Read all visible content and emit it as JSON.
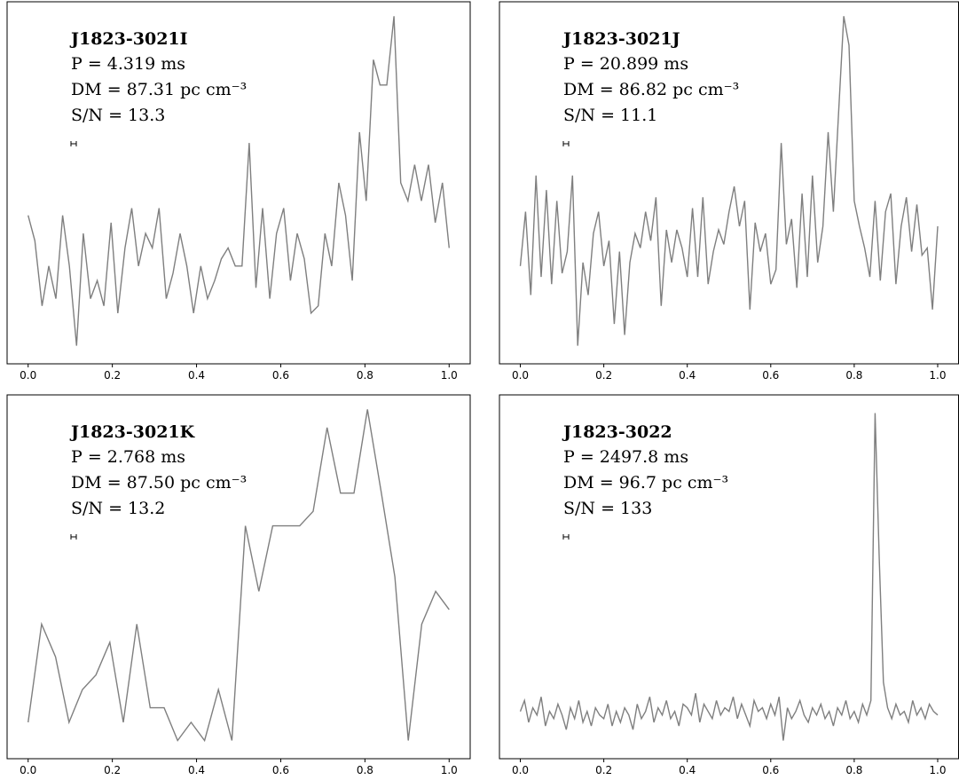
{
  "chart_data": [
    {
      "type": "line",
      "title": "J1823-3021I",
      "annotations": [
        "P = 4.319 ms",
        "DM = 87.31 pc cm⁻³",
        "S/N = 13.3"
      ],
      "color": "#7f7f7f",
      "x": [
        0,
        0.016,
        0.033,
        0.049,
        0.066,
        0.082,
        0.098,
        0.115,
        0.131,
        0.148,
        0.164,
        0.18,
        0.197,
        0.213,
        0.23,
        0.246,
        0.262,
        0.279,
        0.295,
        0.311,
        0.328,
        0.344,
        0.361,
        0.377,
        0.393,
        0.41,
        0.426,
        0.443,
        0.459,
        0.475,
        0.492,
        0.508,
        0.525,
        0.541,
        0.557,
        0.574,
        0.59,
        0.607,
        0.623,
        0.639,
        0.656,
        0.672,
        0.689,
        0.705,
        0.721,
        0.738,
        0.754,
        0.77,
        0.787,
        0.803,
        0.82,
        0.836,
        0.852,
        0.869,
        0.885,
        0.902,
        0.918,
        0.934,
        0.951,
        0.967,
        0.984,
        1.0
      ],
      "values": [
        0.41,
        0.34,
        0.16,
        0.27,
        0.18,
        0.41,
        0.27,
        0.05,
        0.36,
        0.18,
        0.23,
        0.16,
        0.39,
        0.14,
        0.32,
        0.43,
        0.27,
        0.36,
        0.32,
        0.43,
        0.18,
        0.25,
        0.36,
        0.27,
        0.14,
        0.27,
        0.18,
        0.23,
        0.29,
        0.32,
        0.27,
        0.27,
        0.61,
        0.21,
        0.43,
        0.18,
        0.36,
        0.43,
        0.23,
        0.36,
        0.29,
        0.14,
        0.16,
        0.36,
        0.27,
        0.5,
        0.41,
        0.23,
        0.64,
        0.45,
        0.84,
        0.77,
        0.77,
        0.96,
        0.5,
        0.45,
        0.55,
        0.45,
        0.55,
        0.39,
        0.5,
        0.32
      ],
      "xlim": [
        -0.05,
        1.05
      ],
      "ylim": [
        0,
        1
      ],
      "xticks": [
        {
          "value": 0,
          "label": "0.0"
        },
        0.2,
        0.4,
        0.6,
        0.8,
        {
          "value": 1,
          "label": "1.0"
        }
      ]
    },
    {
      "type": "line",
      "title": "J1823-3021J",
      "annotations": [
        "P = 20.899 ms",
        "DM = 86.82 pc cm⁻³",
        "S/N = 11.1"
      ],
      "color": "#7f7f7f",
      "x": [
        0,
        0.0125,
        0.025,
        0.0375,
        0.05,
        0.0625,
        0.075,
        0.0875,
        0.1,
        0.1125,
        0.125,
        0.1375,
        0.15,
        0.1625,
        0.175,
        0.1875,
        0.2,
        0.2125,
        0.225,
        0.2375,
        0.25,
        0.2625,
        0.275,
        0.2875,
        0.3,
        0.3125,
        0.325,
        0.3375,
        0.35,
        0.3625,
        0.375,
        0.3875,
        0.4,
        0.4125,
        0.425,
        0.4375,
        0.45,
        0.4625,
        0.475,
        0.4875,
        0.5,
        0.5125,
        0.525,
        0.5375,
        0.55,
        0.5625,
        0.575,
        0.5875,
        0.6,
        0.6125,
        0.625,
        0.6375,
        0.65,
        0.6625,
        0.675,
        0.6875,
        0.7,
        0.7125,
        0.725,
        0.7375,
        0.75,
        0.7625,
        0.775,
        0.7875,
        0.8,
        0.8125,
        0.825,
        0.8375,
        0.85,
        0.8625,
        0.875,
        0.8875,
        0.9,
        0.9125,
        0.925,
        0.9375,
        0.95,
        0.9625,
        0.975,
        0.9875,
        1.0
      ],
      "values": [
        0.27,
        0.42,
        0.19,
        0.52,
        0.24,
        0.48,
        0.22,
        0.45,
        0.25,
        0.31,
        0.52,
        0.05,
        0.28,
        0.19,
        0.36,
        0.42,
        0.27,
        0.34,
        0.11,
        0.31,
        0.08,
        0.28,
        0.36,
        0.32,
        0.42,
        0.34,
        0.46,
        0.16,
        0.37,
        0.28,
        0.37,
        0.32,
        0.24,
        0.43,
        0.24,
        0.46,
        0.22,
        0.31,
        0.37,
        0.33,
        0.42,
        0.49,
        0.38,
        0.45,
        0.15,
        0.39,
        0.31,
        0.36,
        0.22,
        0.26,
        0.61,
        0.33,
        0.4,
        0.21,
        0.47,
        0.24,
        0.52,
        0.28,
        0.38,
        0.64,
        0.42,
        0.69,
        0.96,
        0.88,
        0.45,
        0.38,
        0.32,
        0.24,
        0.45,
        0.23,
        0.42,
        0.47,
        0.22,
        0.38,
        0.46,
        0.31,
        0.44,
        0.3,
        0.32,
        0.15,
        0.38
      ],
      "xlim": [
        -0.05,
        1.05
      ],
      "ylim": [
        0,
        1
      ],
      "xticks": [
        {
          "value": 0,
          "label": "0.0"
        },
        0.2,
        0.4,
        0.6,
        0.8,
        {
          "value": 1,
          "label": "1.0"
        }
      ]
    },
    {
      "type": "line",
      "title": "J1823-3021K",
      "annotations": [
        "P = 2.768 ms",
        "DM = 87.50 pc cm⁻³",
        "S/N = 13.2"
      ],
      "color": "#7f7f7f",
      "x": [
        0,
        0.032,
        0.065,
        0.097,
        0.129,
        0.161,
        0.194,
        0.226,
        0.258,
        0.29,
        0.323,
        0.355,
        0.387,
        0.419,
        0.452,
        0.484,
        0.516,
        0.548,
        0.581,
        0.613,
        0.645,
        0.677,
        0.71,
        0.742,
        0.774,
        0.806,
        0.839,
        0.871,
        0.903,
        0.935,
        0.968,
        1.0
      ],
      "values": [
        0.1,
        0.37,
        0.28,
        0.1,
        0.19,
        0.23,
        0.32,
        0.1,
        0.37,
        0.14,
        0.14,
        0.05,
        0.1,
        0.05,
        0.19,
        0.05,
        0.64,
        0.46,
        0.64,
        0.64,
        0.64,
        0.68,
        0.91,
        0.73,
        0.73,
        0.96,
        0.73,
        0.5,
        0.05,
        0.37,
        0.46,
        0.41
      ],
      "xlim": [
        -0.05,
        1.05
      ],
      "ylim": [
        0,
        1
      ],
      "xticks": [
        {
          "value": 0,
          "label": "0.0"
        },
        0.2,
        0.4,
        0.6,
        0.8,
        {
          "value": 1,
          "label": "1.0"
        }
      ]
    },
    {
      "type": "line",
      "title": "J1823-3022",
      "annotations": [
        "P = 2497.8 ms",
        "DM = 96.7 pc cm⁻³",
        "S/N = 133"
      ],
      "color": "#7f7f7f",
      "x": [
        0,
        0.01,
        0.02,
        0.03,
        0.04,
        0.05,
        0.06,
        0.07,
        0.08,
        0.09,
        0.1,
        0.11,
        0.12,
        0.13,
        0.14,
        0.15,
        0.16,
        0.17,
        0.18,
        0.19,
        0.2,
        0.21,
        0.22,
        0.23,
        0.24,
        0.25,
        0.26,
        0.27,
        0.28,
        0.29,
        0.3,
        0.31,
        0.32,
        0.33,
        0.34,
        0.35,
        0.36,
        0.37,
        0.38,
        0.39,
        0.4,
        0.41,
        0.42,
        0.43,
        0.44,
        0.45,
        0.46,
        0.47,
        0.48,
        0.49,
        0.5,
        0.51,
        0.52,
        0.53,
        0.54,
        0.55,
        0.56,
        0.57,
        0.58,
        0.59,
        0.6,
        0.61,
        0.62,
        0.63,
        0.64,
        0.65,
        0.66,
        0.67,
        0.68,
        0.69,
        0.7,
        0.71,
        0.72,
        0.73,
        0.74,
        0.75,
        0.76,
        0.77,
        0.78,
        0.79,
        0.8,
        0.81,
        0.82,
        0.83,
        0.84,
        0.85,
        0.86,
        0.87,
        0.88,
        0.89,
        0.9,
        0.91,
        0.92,
        0.93,
        0.94,
        0.95,
        0.96,
        0.97,
        0.98,
        0.99,
        1.0
      ],
      "values": [
        0.13,
        0.16,
        0.1,
        0.14,
        0.12,
        0.17,
        0.09,
        0.13,
        0.11,
        0.15,
        0.12,
        0.08,
        0.14,
        0.11,
        0.16,
        0.1,
        0.13,
        0.09,
        0.14,
        0.12,
        0.11,
        0.15,
        0.09,
        0.13,
        0.1,
        0.14,
        0.12,
        0.08,
        0.15,
        0.11,
        0.13,
        0.17,
        0.1,
        0.14,
        0.12,
        0.16,
        0.11,
        0.13,
        0.09,
        0.15,
        0.14,
        0.12,
        0.18,
        0.1,
        0.15,
        0.13,
        0.11,
        0.16,
        0.12,
        0.14,
        0.13,
        0.17,
        0.11,
        0.15,
        0.12,
        0.09,
        0.16,
        0.13,
        0.14,
        0.11,
        0.15,
        0.12,
        0.17,
        0.05,
        0.14,
        0.11,
        0.13,
        0.16,
        0.12,
        0.1,
        0.14,
        0.12,
        0.15,
        0.11,
        0.13,
        0.09,
        0.14,
        0.12,
        0.16,
        0.11,
        0.13,
        0.1,
        0.15,
        0.12,
        0.16,
        0.95,
        0.55,
        0.21,
        0.14,
        0.11,
        0.15,
        0.12,
        0.13,
        0.1,
        0.16,
        0.12,
        0.14,
        0.11,
        0.15,
        0.13,
        0.12
      ],
      "xlim": [
        -0.05,
        1.05
      ],
      "ylim": [
        0,
        1
      ],
      "xticks": [
        {
          "value": 0,
          "label": "0.0"
        },
        0.2,
        0.4,
        0.6,
        0.8,
        {
          "value": 1,
          "label": "1.0"
        }
      ]
    }
  ]
}
